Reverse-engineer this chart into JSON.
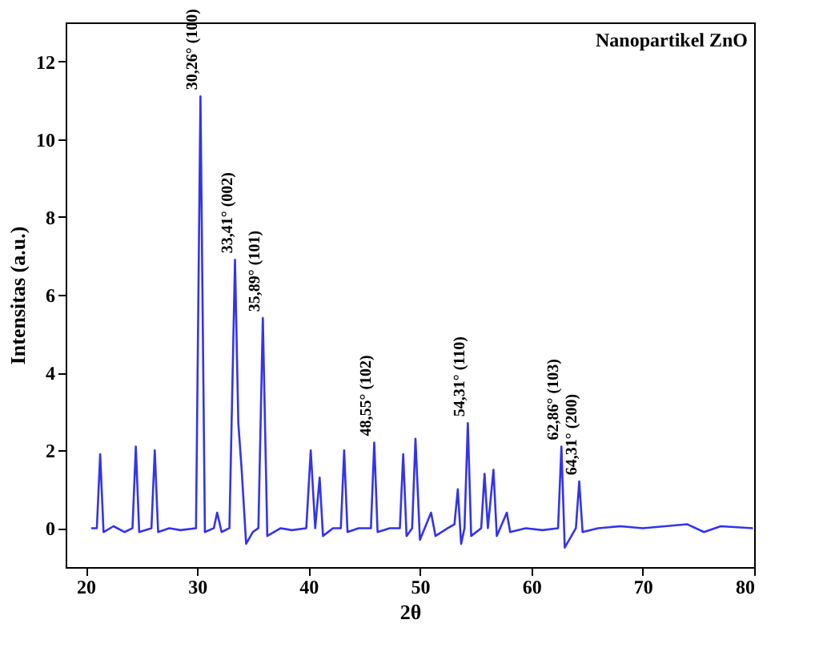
{
  "chart_data": {
    "type": "line",
    "xlabel": "2θ",
    "ylabel": "Intensitas (a.u.)",
    "x": [
      20.5,
      21.0,
      21.3,
      21.6,
      22.5,
      23.5,
      24.2,
      24.5,
      24.8,
      25.9,
      26.2,
      26.5,
      27.5,
      28.5,
      29.9,
      30.3,
      30.7,
      31.5,
      31.8,
      32.2,
      32.9,
      33.4,
      33.7,
      34.0,
      34.4,
      35.0,
      35.5,
      35.9,
      36.3,
      37.5,
      38.5,
      39.8,
      40.2,
      40.6,
      41.0,
      41.3,
      42.2,
      42.9,
      43.2,
      43.5,
      44.5,
      45.6,
      45.9,
      46.2,
      47.3,
      48.2,
      48.5,
      48.8,
      49.3,
      49.6,
      50.0,
      51.0,
      51.4,
      52.5,
      53.1,
      53.4,
      53.7,
      54.0,
      54.3,
      54.6,
      55.5,
      55.8,
      56.1,
      56.6,
      56.9,
      57.8,
      58.1,
      59.5,
      61.0,
      62.4,
      62.7,
      63.0,
      64.0,
      64.3,
      64.6,
      66.0,
      68.0,
      70.0,
      72.0,
      74.0,
      75.5,
      77.0,
      79.9
    ],
    "series": [
      {
        "color": "#3333ee",
        "values": [
          0,
          0,
          1.9,
          -0.1,
          0.05,
          -0.1,
          0,
          2.1,
          -0.1,
          0,
          2.0,
          -0.1,
          0,
          -0.05,
          0,
          11.1,
          -0.1,
          0,
          0.4,
          -0.1,
          0,
          6.9,
          2.7,
          1.5,
          -0.4,
          -0.1,
          0,
          5.4,
          -0.2,
          0,
          -0.05,
          0,
          2.0,
          0,
          1.3,
          -0.2,
          0,
          0,
          2.0,
          -0.1,
          0,
          0,
          2.2,
          -0.1,
          0,
          0,
          1.9,
          -0.2,
          0,
          2.3,
          -0.3,
          0.4,
          -0.2,
          0,
          0.1,
          1.0,
          -0.4,
          0,
          2.7,
          -0.2,
          0,
          1.4,
          0,
          1.5,
          -0.2,
          0.4,
          -0.1,
          0,
          -0.05,
          0,
          2.1,
          -0.5,
          0,
          1.2,
          -0.1,
          0,
          0.05,
          0,
          0.05,
          0.1,
          -0.1,
          0.05,
          0
        ]
      }
    ],
    "xlim": [
      18.2,
      80
    ],
    "xticks": [
      20,
      30,
      40,
      50,
      60,
      70,
      80
    ],
    "ylim": [
      -1,
      13
    ],
    "yticks": [
      0,
      2,
      4,
      6,
      8,
      10,
      12
    ],
    "grid": false,
    "annotations": [
      "Nanopartikel ZnO",
      {
        "text": "30,26° (100)",
        "x": 30.3,
        "y": 11.1
      },
      {
        "text": "33,41° (002)",
        "x": 33.4,
        "y": 6.9
      },
      {
        "text": "35,89° (101)",
        "x": 35.9,
        "y": 5.4
      },
      {
        "text": "48,55° (102)",
        "x": 45.9,
        "y": 2.2
      },
      {
        "text": "54,31° (110)",
        "x": 54.3,
        "y": 2.7
      },
      {
        "text": "62,86° (103)",
        "x": 62.7,
        "y": 2.1
      },
      {
        "text": "64,31° (200)",
        "x": 64.3,
        "y": 1.2
      }
    ]
  }
}
